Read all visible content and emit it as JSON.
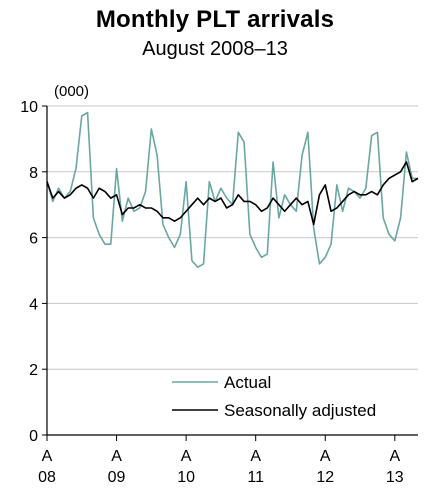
{
  "chart_data": {
    "type": "line",
    "title": "Monthly PLT arrivals",
    "subtitle": "August 2008–13",
    "ylabel": "(000)",
    "xlabel": "",
    "ylim": [
      0,
      10
    ],
    "yticks": [
      "0",
      "2",
      "4",
      "6",
      "8",
      "10"
    ],
    "xticks": [
      {
        "month": "A",
        "year": "08",
        "index": 0
      },
      {
        "month": "A",
        "year": "09",
        "index": 12
      },
      {
        "month": "A",
        "year": "10",
        "index": 24
      },
      {
        "month": "A",
        "year": "11",
        "index": 36
      },
      {
        "month": "A",
        "year": "12",
        "index": 48
      },
      {
        "month": "A",
        "year": "13",
        "index": 60
      }
    ],
    "grid": true,
    "legend_position": "bottom-right",
    "colors": {
      "actual": "#6aa7a1",
      "seasonal": "#000000",
      "grid": "#c8c8c8"
    },
    "series": [
      {
        "name": "Actual",
        "values": [
          7.7,
          7.1,
          7.5,
          7.2,
          7.4,
          8.1,
          9.7,
          9.8,
          6.6,
          6.1,
          5.8,
          5.8,
          8.1,
          6.5,
          7.2,
          6.8,
          6.9,
          7.4,
          9.3,
          8.5,
          6.4,
          6.0,
          5.7,
          6.1,
          7.7,
          5.3,
          5.1,
          5.2,
          7.7,
          7.1,
          7.5,
          7.2,
          7.0,
          9.2,
          8.9,
          6.1,
          5.7,
          5.4,
          5.5,
          8.3,
          6.6,
          7.3,
          7.0,
          6.8,
          8.5,
          9.2,
          6.3,
          5.2,
          5.4,
          5.8,
          7.6,
          6.8,
          7.5,
          7.4,
          7.2,
          7.5,
          9.1,
          9.2,
          6.6,
          6.1,
          5.9,
          6.6,
          8.6,
          7.8,
          7.8
        ]
      },
      {
        "name": "Seasonally adjusted",
        "values": [
          7.7,
          7.2,
          7.4,
          7.2,
          7.3,
          7.5,
          7.6,
          7.5,
          7.2,
          7.5,
          7.4,
          7.2,
          7.3,
          6.7,
          6.9,
          6.9,
          7.0,
          6.9,
          6.9,
          6.8,
          6.6,
          6.6,
          6.5,
          6.6,
          6.8,
          7.0,
          7.2,
          7.0,
          7.2,
          7.1,
          7.2,
          6.9,
          7.0,
          7.3,
          7.1,
          7.1,
          7.0,
          6.8,
          6.9,
          7.2,
          7.0,
          6.8,
          7.0,
          7.2,
          7.0,
          7.1,
          6.4,
          7.3,
          7.6,
          6.8,
          6.9,
          7.1,
          7.3,
          7.4,
          7.3,
          7.3,
          7.4,
          7.3,
          7.6,
          7.8,
          7.9,
          8.0,
          8.3,
          7.7,
          7.8
        ]
      }
    ]
  }
}
